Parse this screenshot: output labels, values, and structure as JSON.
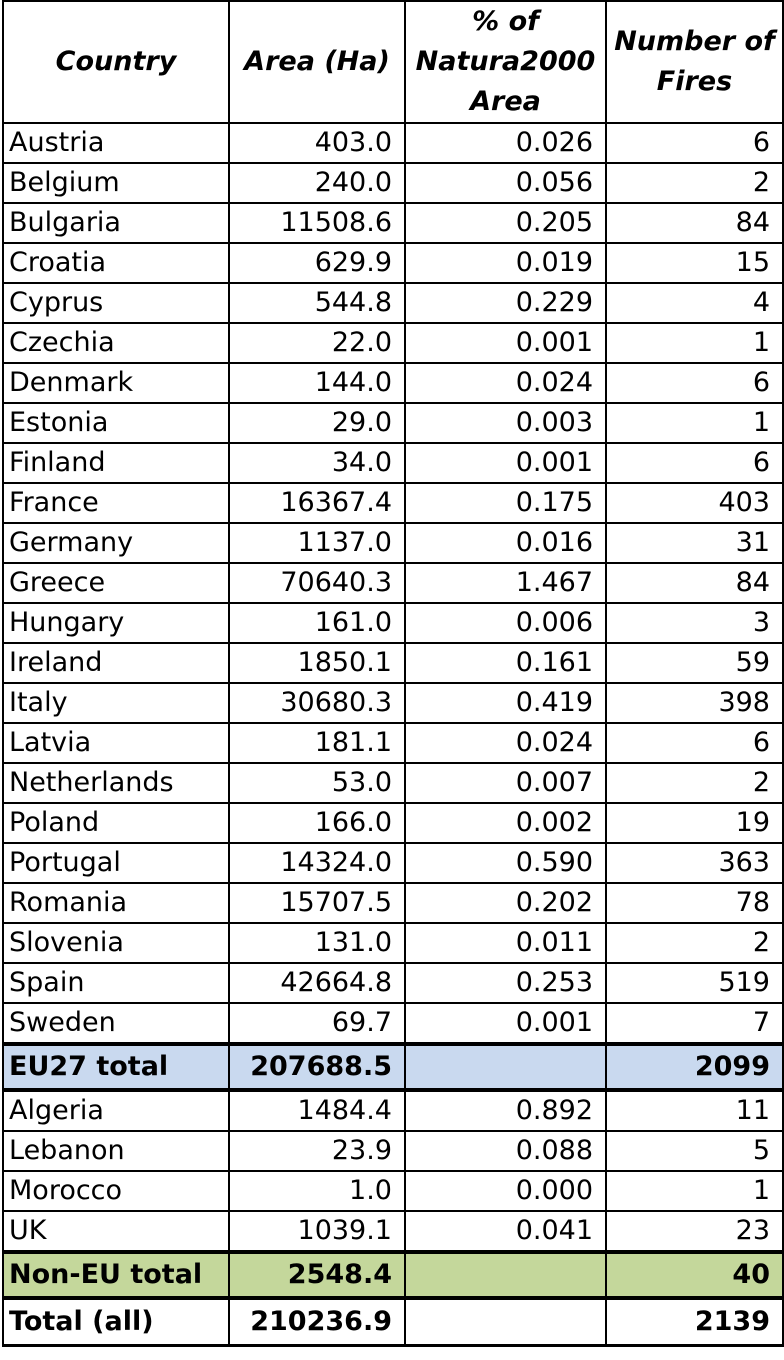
{
  "headers": [
    "Country",
    "Area (Ha)",
    "% of Natura2000 Area",
    "Number of Fires"
  ],
  "eu_rows": [
    {
      "country": "Austria",
      "area": "403.0",
      "pct": "0.026",
      "fires": "6"
    },
    {
      "country": "Belgium",
      "area": "240.0",
      "pct": "0.056",
      "fires": "2"
    },
    {
      "country": "Bulgaria",
      "area": "11508.6",
      "pct": "0.205",
      "fires": "84"
    },
    {
      "country": "Croatia",
      "area": "629.9",
      "pct": "0.019",
      "fires": "15"
    },
    {
      "country": "Cyprus",
      "area": "544.8",
      "pct": "0.229",
      "fires": "4"
    },
    {
      "country": "Czechia",
      "area": "22.0",
      "pct": "0.001",
      "fires": "1"
    },
    {
      "country": "Denmark",
      "area": "144.0",
      "pct": "0.024",
      "fires": "6"
    },
    {
      "country": "Estonia",
      "area": "29.0",
      "pct": "0.003",
      "fires": "1"
    },
    {
      "country": "Finland",
      "area": "34.0",
      "pct": "0.001",
      "fires": "6"
    },
    {
      "country": "France",
      "area": "16367.4",
      "pct": "0.175",
      "fires": "403"
    },
    {
      "country": "Germany",
      "area": "1137.0",
      "pct": "0.016",
      "fires": "31"
    },
    {
      "country": "Greece",
      "area": "70640.3",
      "pct": "1.467",
      "fires": "84"
    },
    {
      "country": "Hungary",
      "area": "161.0",
      "pct": "0.006",
      "fires": "3"
    },
    {
      "country": "Ireland",
      "area": "1850.1",
      "pct": "0.161",
      "fires": "59"
    },
    {
      "country": "Italy",
      "area": "30680.3",
      "pct": "0.419",
      "fires": "398"
    },
    {
      "country": "Latvia",
      "area": "181.1",
      "pct": "0.024",
      "fires": "6"
    },
    {
      "country": "Netherlands",
      "area": "53.0",
      "pct": "0.007",
      "fires": "2"
    },
    {
      "country": "Poland",
      "area": "166.0",
      "pct": "0.002",
      "fires": "19"
    },
    {
      "country": "Portugal",
      "area": "14324.0",
      "pct": "0.590",
      "fires": "363"
    },
    {
      "country": "Romania",
      "area": "15707.5",
      "pct": "0.202",
      "fires": "78"
    },
    {
      "country": "Slovenia",
      "area": "131.0",
      "pct": "0.011",
      "fires": "2"
    },
    {
      "country": "Spain",
      "area": "42664.8",
      "pct": "0.253",
      "fires": "519"
    },
    {
      "country": "Sweden",
      "area": "69.7",
      "pct": "0.001",
      "fires": "7"
    }
  ],
  "eu_total": {
    "label": "EU27 total",
    "area": "207688.5",
    "pct": "",
    "fires": "2099"
  },
  "non_eu_rows": [
    {
      "country": "Algeria",
      "area": "1484.4",
      "pct": "0.892",
      "fires": "11"
    },
    {
      "country": "Lebanon",
      "area": "23.9",
      "pct": "0.088",
      "fires": "5"
    },
    {
      "country": "Morocco",
      "area": "1.0",
      "pct": "0.000",
      "fires": "1"
    },
    {
      "country": "UK",
      "area": "1039.1",
      "pct": "0.041",
      "fires": "23"
    }
  ],
  "non_eu_total": {
    "label": "Non-EU total",
    "area": "2548.4",
    "pct": "",
    "fires": "40"
  },
  "grand_total": {
    "label": "Total (all)",
    "area": "210236.9",
    "pct": "",
    "fires": "2139"
  },
  "colors": {
    "eu_total_bg": "#c9d9ef",
    "non_eu_total_bg": "#c4d79b"
  }
}
